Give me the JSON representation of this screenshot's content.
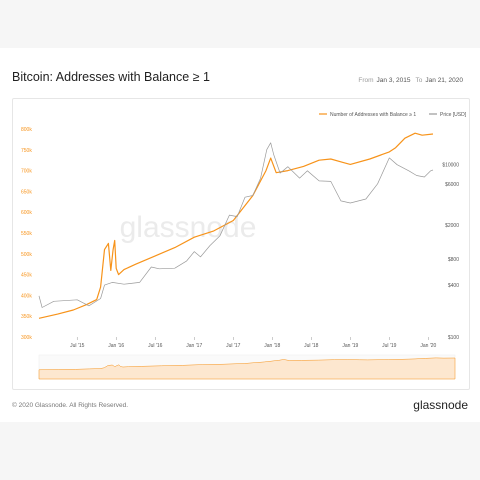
{
  "header": {
    "title": "Bitcoin: Addresses with Balance ≥ 1",
    "from_label": "From",
    "from_value": "Jan 3, 2015",
    "to_label": "To",
    "to_value": "Jan 21, 2020"
  },
  "footer": {
    "copyright": "© 2020 Glassnode. All Rights Reserved.",
    "brand": "glassnode"
  },
  "watermark": "glassnode",
  "colors": {
    "addresses": "#f7931a",
    "price": "#9a9a9a",
    "axis_left": "#f7931a",
    "axis_right": "#555555"
  },
  "chart_data": {
    "type": "line",
    "title": "Bitcoin: Addresses with Balance ≥ 1",
    "x_ticks": [
      "Jul '15",
      "Jan '16",
      "Jul '16",
      "Jan '17",
      "Jul '17",
      "Jan '18",
      "Jul '18",
      "Jan '19",
      "Jul '19",
      "Jan '20"
    ],
    "x_tick_values": [
      2015.5,
      2016.0,
      2016.5,
      2017.0,
      2017.5,
      2018.0,
      2018.5,
      2019.0,
      2019.5,
      2020.0
    ],
    "x_range": [
      2015.01,
      2020.06
    ],
    "y_left": {
      "ticks": [
        "300k",
        "350k",
        "400k",
        "450k",
        "500k",
        "550k",
        "600k",
        "650k",
        "700k",
        "750k",
        "800k"
      ],
      "range": [
        300000,
        800000
      ]
    },
    "y_right": {
      "scale": "log",
      "ticks": [
        "$100",
        "$400",
        "$800",
        "$2000",
        "$6000",
        "$10000"
      ],
      "tick_values": [
        100,
        400,
        800,
        2000,
        6000,
        10000
      ],
      "range": [
        100,
        26000
      ]
    },
    "legend": [
      "Number of Addresses with Balance ≥ 1",
      "Price [USD]"
    ],
    "legend_position": "top-right",
    "series": [
      {
        "name": "Number of Addresses with Balance ≥ 1",
        "axis": "left",
        "points": [
          [
            2015.01,
            345000
          ],
          [
            2015.25,
            355000
          ],
          [
            2015.45,
            365000
          ],
          [
            2015.62,
            378000
          ],
          [
            2015.75,
            390000
          ],
          [
            2015.8,
            420000
          ],
          [
            2015.85,
            510000
          ],
          [
            2015.9,
            525000
          ],
          [
            2015.93,
            460000
          ],
          [
            2015.96,
            510000
          ],
          [
            2015.98,
            532000
          ],
          [
            2016.0,
            465000
          ],
          [
            2016.03,
            450000
          ],
          [
            2016.1,
            462000
          ],
          [
            2016.25,
            475000
          ],
          [
            2016.5,
            495000
          ],
          [
            2016.75,
            515000
          ],
          [
            2017.0,
            540000
          ],
          [
            2017.25,
            555000
          ],
          [
            2017.5,
            580000
          ],
          [
            2017.75,
            640000
          ],
          [
            2017.92,
            700000
          ],
          [
            2017.98,
            730000
          ],
          [
            2018.05,
            695000
          ],
          [
            2018.2,
            700000
          ],
          [
            2018.4,
            710000
          ],
          [
            2018.6,
            725000
          ],
          [
            2018.75,
            728000
          ],
          [
            2018.9,
            720000
          ],
          [
            2019.0,
            715000
          ],
          [
            2019.25,
            728000
          ],
          [
            2019.5,
            745000
          ],
          [
            2019.58,
            755000
          ],
          [
            2019.7,
            778000
          ],
          [
            2019.83,
            790000
          ],
          [
            2019.92,
            785000
          ],
          [
            2020.06,
            788000
          ]
        ]
      },
      {
        "name": "Price [USD]",
        "axis": "right",
        "points": [
          [
            2015.01,
            300
          ],
          [
            2015.05,
            220
          ],
          [
            2015.2,
            260
          ],
          [
            2015.5,
            270
          ],
          [
            2015.65,
            230
          ],
          [
            2015.8,
            280
          ],
          [
            2015.85,
            400
          ],
          [
            2015.95,
            430
          ],
          [
            2016.1,
            410
          ],
          [
            2016.3,
            430
          ],
          [
            2016.45,
            650
          ],
          [
            2016.55,
            620
          ],
          [
            2016.75,
            630
          ],
          [
            2016.9,
            760
          ],
          [
            2017.0,
            980
          ],
          [
            2017.08,
            850
          ],
          [
            2017.2,
            1150
          ],
          [
            2017.33,
            1500
          ],
          [
            2017.45,
            2600
          ],
          [
            2017.55,
            2500
          ],
          [
            2017.65,
            4200
          ],
          [
            2017.75,
            4400
          ],
          [
            2017.85,
            7000
          ],
          [
            2017.93,
            15000
          ],
          [
            2017.98,
            18000
          ],
          [
            2018.02,
            13000
          ],
          [
            2018.1,
            8000
          ],
          [
            2018.2,
            9500
          ],
          [
            2018.35,
            7000
          ],
          [
            2018.45,
            8500
          ],
          [
            2018.6,
            6500
          ],
          [
            2018.75,
            6400
          ],
          [
            2018.88,
            3800
          ],
          [
            2019.0,
            3600
          ],
          [
            2019.2,
            4000
          ],
          [
            2019.35,
            6000
          ],
          [
            2019.5,
            12000
          ],
          [
            2019.6,
            10000
          ],
          [
            2019.75,
            8500
          ],
          [
            2019.85,
            7500
          ],
          [
            2019.95,
            7200
          ],
          [
            2020.03,
            8500
          ],
          [
            2020.06,
            8700
          ]
        ]
      }
    ]
  }
}
